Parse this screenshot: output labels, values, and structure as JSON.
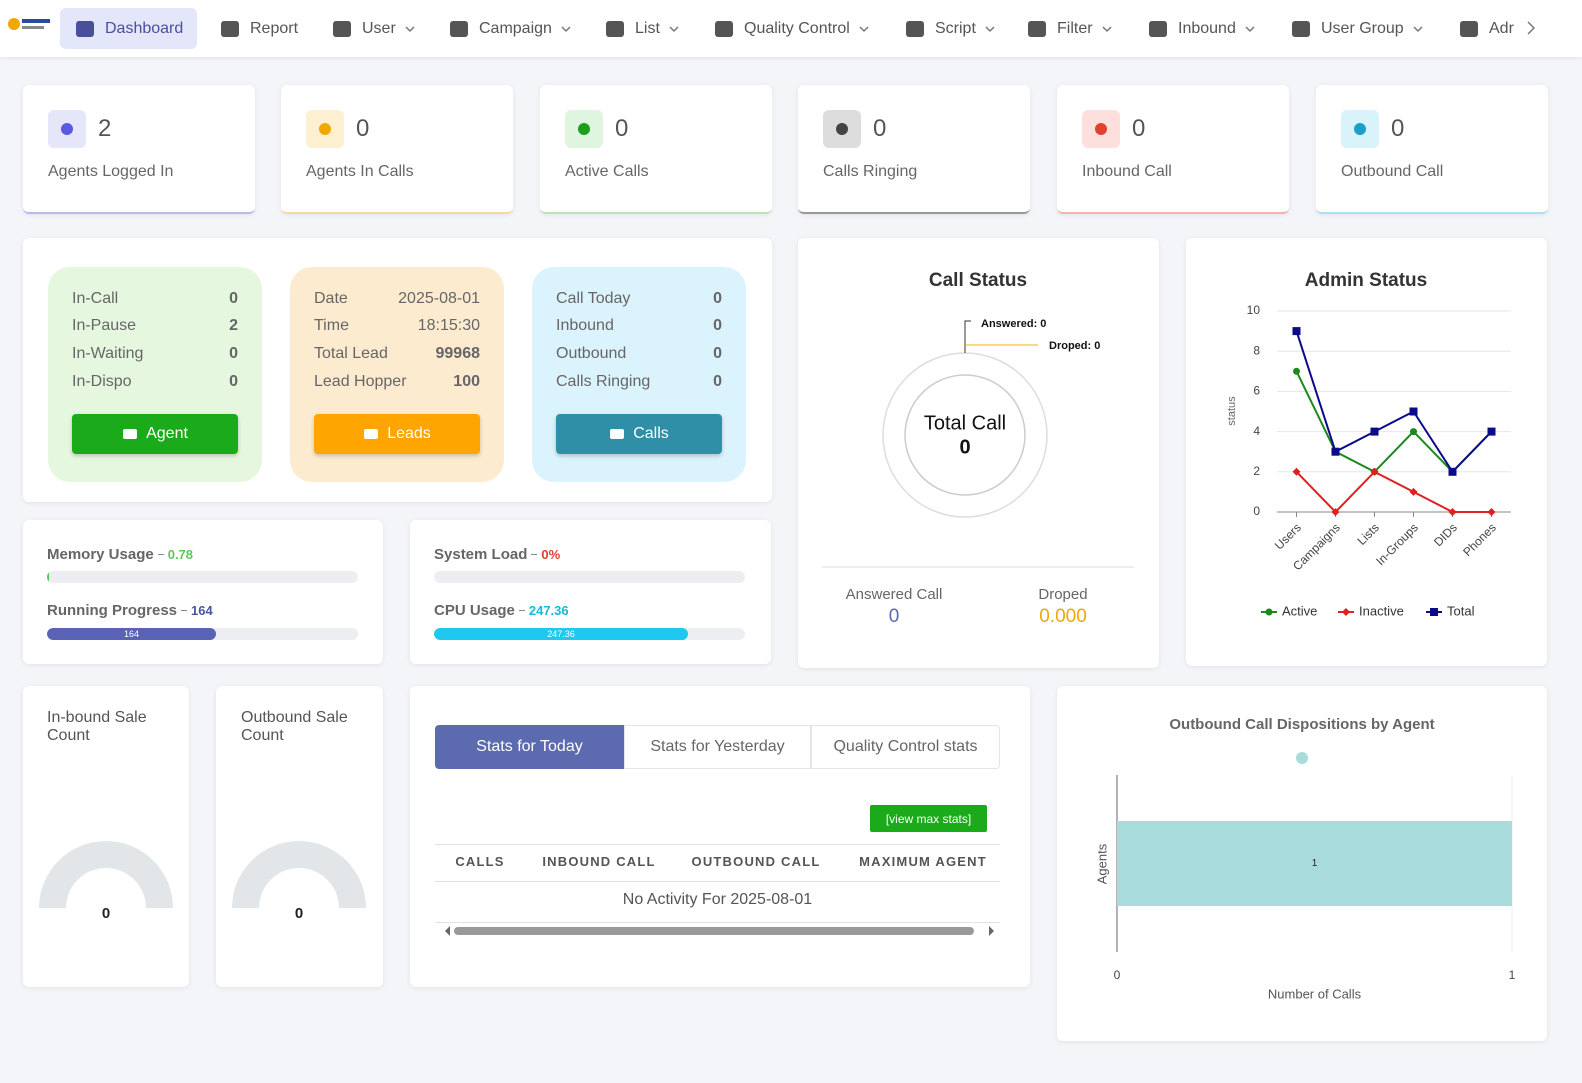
{
  "nav": {
    "items": [
      "Dashboard",
      "Report",
      "User",
      "Campaign",
      "List",
      "Quality Control",
      "Script",
      "Filter",
      "Inbound",
      "User Group",
      "Adr"
    ]
  },
  "stats": [
    {
      "value": 2,
      "label": "Agents Logged In"
    },
    {
      "value": 0,
      "label": "Agents In Calls"
    },
    {
      "value": 0,
      "label": "Active Calls"
    },
    {
      "value": 0,
      "label": "Calls Ringing"
    },
    {
      "value": 0,
      "label": "Inbound Call"
    },
    {
      "value": 0,
      "label": "Outbound Call"
    }
  ],
  "agent_panel": {
    "rows": [
      {
        "label": "In-Call",
        "value": 0
      },
      {
        "label": "In-Pause",
        "value": 2
      },
      {
        "label": "In-Waiting",
        "value": 0
      },
      {
        "label": "In-Dispo",
        "value": 0
      }
    ],
    "button": "Agent"
  },
  "lead_panel": {
    "rows": [
      {
        "label": "Date",
        "value": "2025-08-01"
      },
      {
        "label": "Time",
        "value": "18:15:30"
      },
      {
        "label": "Total Lead",
        "value": 99968
      },
      {
        "label": "Lead Hopper",
        "value": 100
      }
    ],
    "button": "Leads"
  },
  "call_panel": {
    "rows": [
      {
        "label": "Call Today",
        "value": 0
      },
      {
        "label": "Inbound",
        "value": 0
      },
      {
        "label": "Outbound",
        "value": 0
      },
      {
        "label": "Calls Ringing",
        "value": 0
      }
    ],
    "button": "Calls"
  },
  "usage": [
    {
      "label": "Memory Usage",
      "value": 0.78
    },
    {
      "label": "Running Progress",
      "value": 164
    },
    {
      "label": "System Load",
      "value": "0%"
    },
    {
      "label": "CPU Usage",
      "value": 247.36
    }
  ],
  "call_status": {
    "title": "Call Status",
    "callouts": [
      "Answered: 0",
      "Droped: 0"
    ],
    "center_label": "Total Call",
    "center_value": 0,
    "answered_label": "Answered Call",
    "answered_value": 0,
    "droped_label": "Droped",
    "droped_value": "0.000"
  },
  "sale_counts": [
    {
      "title": "In-bound Sale Count",
      "value": 0
    },
    {
      "title": "Outbound Sale Count",
      "value": 0
    }
  ],
  "stats_table": {
    "tabs": [
      "Stats for Today",
      "Stats for Yesterday",
      "Quality Control stats"
    ],
    "button": "[view max stats]",
    "headers": [
      "CALLS",
      "INBOUND CALL",
      "OUTBOUND CALL",
      "MAXIMUM AGENT"
    ],
    "empty_message": "No Activity For 2025-08-01"
  },
  "chart_data": [
    {
      "type": "line",
      "title": "Admin Status",
      "ylabel": "status",
      "categories": [
        "Users",
        "Campaigns",
        "Lists",
        "In-Groups",
        "DIDs",
        "Phones"
      ],
      "series": [
        {
          "name": "Active",
          "color": "#1a8a1a",
          "marker": "circle",
          "values": [
            7,
            3,
            2,
            4,
            2,
            4
          ]
        },
        {
          "name": "Inactive",
          "color": "#e02020",
          "marker": "diamond",
          "values": [
            2,
            0,
            2,
            1,
            0,
            0
          ]
        },
        {
          "name": "Total",
          "color": "#0a0a8a",
          "marker": "square",
          "values": [
            9,
            3,
            4,
            5,
            2,
            4
          ]
        }
      ],
      "ylim": [
        0,
        10
      ],
      "yticks": [
        0,
        2,
        4,
        6,
        8,
        10
      ],
      "grid": true,
      "legend": "bottom"
    },
    {
      "type": "hbar",
      "title": "Outbound Call Dispositions by Agent",
      "xlabel": "Number of Calls",
      "ylabel": "Agents",
      "categories": [
        null
      ],
      "values": [
        1
      ],
      "color": "#a8dcdc",
      "xlim": [
        0,
        1
      ],
      "xticks": [
        0,
        1
      ],
      "grid": true,
      "legend": "top"
    }
  ]
}
